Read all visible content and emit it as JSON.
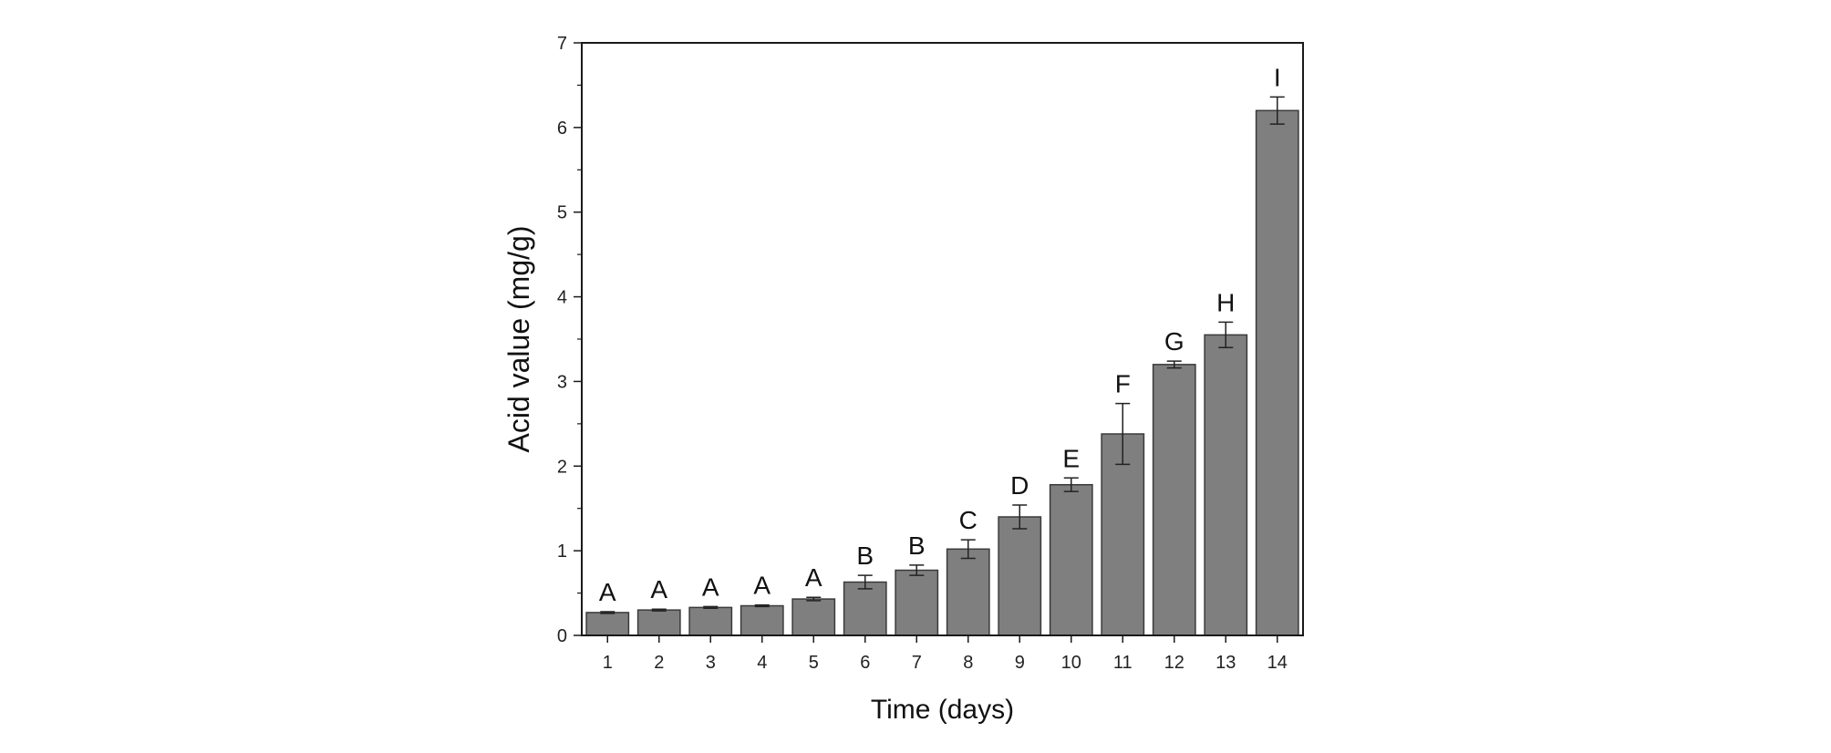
{
  "chart_data": {
    "type": "bar",
    "xlabel": "Time (days)",
    "ylabel": "Acid value (mg/g)",
    "ylim": [
      0,
      7
    ],
    "yticks": [
      "0",
      "1",
      "2",
      "3",
      "4",
      "5",
      "6",
      "7"
    ],
    "categories": [
      "1",
      "2",
      "3",
      "4",
      "5",
      "6",
      "7",
      "8",
      "9",
      "10",
      "11",
      "12",
      "13",
      "14"
    ],
    "values": [
      0.27,
      0.3,
      0.33,
      0.35,
      0.43,
      0.63,
      0.77,
      1.02,
      1.4,
      1.78,
      2.38,
      3.2,
      3.55,
      6.2
    ],
    "errors": [
      0.01,
      0.01,
      0.01,
      0.01,
      0.02,
      0.08,
      0.06,
      0.11,
      0.14,
      0.08,
      0.36,
      0.04,
      0.15,
      0.16
    ],
    "significance_labels": [
      "A",
      "A",
      "A",
      "A",
      "A",
      "B",
      "B",
      "C",
      "D",
      "E",
      "F",
      "G",
      "H",
      "I"
    ],
    "bar_color": "#7f7f7f",
    "grid": false,
    "legend": false
  }
}
